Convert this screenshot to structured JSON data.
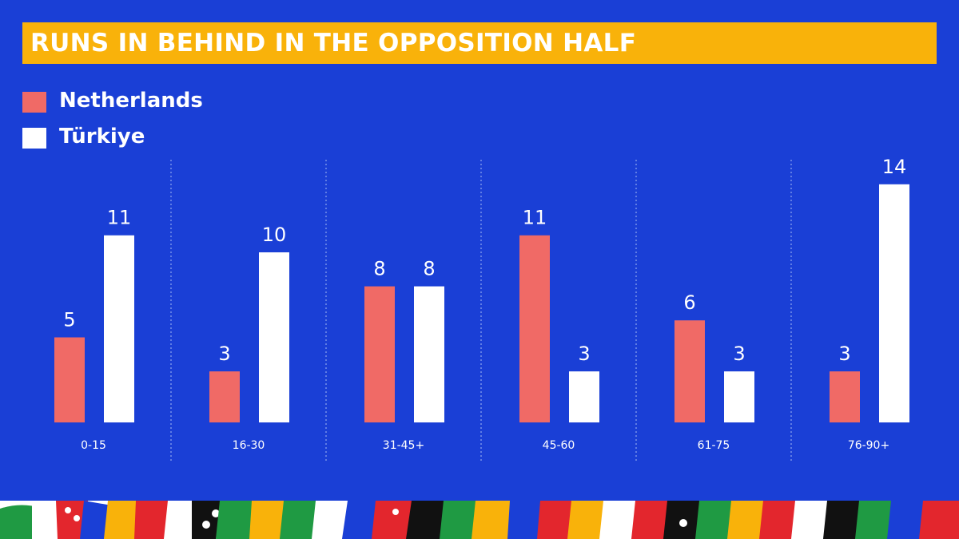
{
  "colors": {
    "background": "#1a3fd6",
    "title_bar": "#f9b20a",
    "netherlands": "#f06a66",
    "turkiye": "#ffffff",
    "divider": "#8fa6ee"
  },
  "chart_data": {
    "type": "bar",
    "title": "RUNS IN BEHIND IN THE OPPOSITION HALF",
    "xlabel": "",
    "ylabel": "",
    "legend_position": "top-left",
    "grid": false,
    "ylim": [
      0,
      14
    ],
    "categories": [
      "0-15",
      "16-30",
      "31-45+",
      "45-60",
      "61-75",
      "76-90+"
    ],
    "series": [
      {
        "name": "Netherlands",
        "color": "#f06a66",
        "values": [
          5,
          3,
          8,
          11,
          6,
          3
        ]
      },
      {
        "name": "Türkiye",
        "color": "#ffffff",
        "values": [
          11,
          10,
          8,
          3,
          3,
          14
        ]
      }
    ]
  }
}
